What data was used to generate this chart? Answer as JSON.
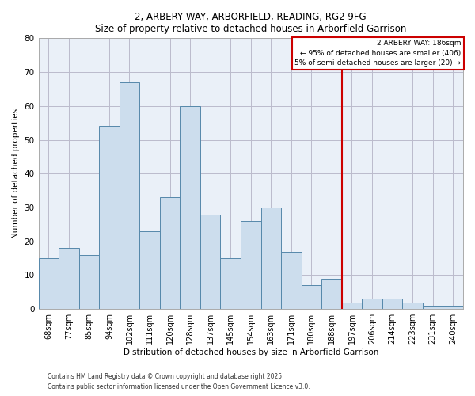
{
  "title": "2, ARBERY WAY, ARBORFIELD, READING, RG2 9FG",
  "subtitle": "Size of property relative to detached houses in Arborfield Garrison",
  "xlabel": "Distribution of detached houses by size in Arborfield Garrison",
  "ylabel": "Number of detached properties",
  "bar_labels": [
    "68sqm",
    "77sqm",
    "85sqm",
    "94sqm",
    "102sqm",
    "111sqm",
    "120sqm",
    "128sqm",
    "137sqm",
    "145sqm",
    "154sqm",
    "163sqm",
    "171sqm",
    "180sqm",
    "188sqm",
    "197sqm",
    "206sqm",
    "214sqm",
    "223sqm",
    "231sqm",
    "240sqm"
  ],
  "bar_values": [
    15,
    18,
    16,
    54,
    67,
    23,
    33,
    60,
    28,
    15,
    26,
    30,
    17,
    7,
    9,
    2,
    3,
    3,
    2,
    1,
    1
  ],
  "bar_color": "#ccdded",
  "bar_edge_color": "#5588aa",
  "grid_color": "#bbbbcc",
  "bg_color": "#ffffff",
  "plot_bg_color": "#eaf0f8",
  "vline_x": 14.5,
  "vline_color": "#cc0000",
  "annotation_title": "2 ARBERY WAY: 186sqm",
  "annotation_line1": "← 95% of detached houses are smaller (406)",
  "annotation_line2": "5% of semi-detached houses are larger (20) →",
  "annotation_box_color": "#ffffff",
  "annotation_border_color": "#cc0000",
  "ylim": [
    0,
    80
  ],
  "yticks": [
    0,
    10,
    20,
    30,
    40,
    50,
    60,
    70,
    80
  ],
  "footnote1": "Contains HM Land Registry data © Crown copyright and database right 2025.",
  "footnote2": "Contains public sector information licensed under the Open Government Licence v3.0."
}
